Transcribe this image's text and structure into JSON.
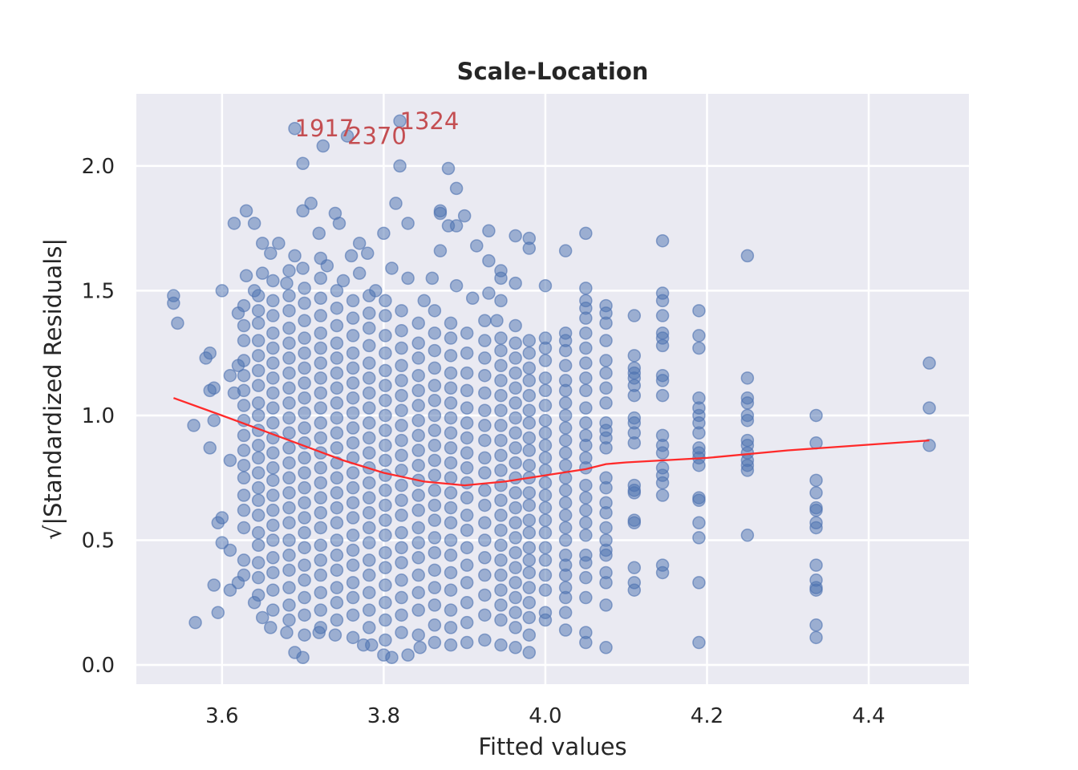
{
  "chart_data": {
    "type": "scatter",
    "title": "Scale-Location",
    "xlabel": "Fitted values",
    "ylabel": "√|Standardized Residuals|",
    "xlim": [
      3.494,
      4.524
    ],
    "ylim": [
      -0.077,
      2.289
    ],
    "xticks": [
      "3.6",
      "3.8",
      "4.0",
      "4.2",
      "4.4"
    ],
    "yticks": [
      "0.0",
      "0.5",
      "1.0",
      "1.5",
      "2.0"
    ],
    "grid": true,
    "colors": {
      "points": "#4c72b0",
      "line": "#ff2a2a",
      "annotations": "#c44e52",
      "background": "#eaeaf2"
    },
    "annotations": [
      {
        "label": "1917",
        "x": 3.69,
        "y": 2.15
      },
      {
        "label": "2370",
        "x": 3.755,
        "y": 2.12
      },
      {
        "label": "1324",
        "x": 3.82,
        "y": 2.18
      }
    ],
    "lowess_line": [
      [
        3.54,
        1.07
      ],
      [
        3.6,
        1.0
      ],
      [
        3.65,
        0.94
      ],
      [
        3.7,
        0.88
      ],
      [
        3.75,
        0.82
      ],
      [
        3.8,
        0.77
      ],
      [
        3.85,
        0.735
      ],
      [
        3.9,
        0.72
      ],
      [
        3.95,
        0.735
      ],
      [
        4.0,
        0.76
      ],
      [
        4.05,
        0.785
      ],
      [
        4.075,
        0.805
      ],
      [
        4.1,
        0.812
      ],
      [
        4.2,
        0.83
      ],
      [
        4.3,
        0.86
      ],
      [
        4.475,
        0.9
      ]
    ],
    "points": [
      [
        3.54,
        1.48
      ],
      [
        3.54,
        1.45
      ],
      [
        3.545,
        1.37
      ],
      [
        3.565,
        0.96
      ],
      [
        3.567,
        0.17
      ],
      [
        3.58,
        1.23
      ],
      [
        3.585,
        1.25
      ],
      [
        3.585,
        1.1
      ],
      [
        3.59,
        1.11
      ],
      [
        3.59,
        0.98
      ],
      [
        3.585,
        0.87
      ],
      [
        3.59,
        0.32
      ],
      [
        3.595,
        0.57
      ],
      [
        3.595,
        0.21
      ],
      [
        3.6,
        1.5
      ],
      [
        3.61,
        0.82
      ],
      [
        3.61,
        0.3
      ],
      [
        3.615,
        1.77
      ],
      [
        3.63,
        1.82
      ],
      [
        3.64,
        1.77
      ],
      [
        3.65,
        1.69
      ],
      [
        3.67,
        1.69
      ],
      [
        3.69,
        2.15
      ],
      [
        3.7,
        2.01
      ],
      [
        3.7,
        1.82
      ],
      [
        3.71,
        1.85
      ],
      [
        3.725,
        2.08
      ],
      [
        3.755,
        2.12
      ],
      [
        3.82,
        2.18
      ],
      [
        3.82,
        2.0
      ],
      [
        3.815,
        1.85
      ],
      [
        3.8,
        1.73
      ],
      [
        3.83,
        1.77
      ],
      [
        3.88,
        1.99
      ],
      [
        3.89,
        1.91
      ],
      [
        3.87,
        1.82
      ],
      [
        3.87,
        1.81
      ],
      [
        3.88,
        1.76
      ],
      [
        3.89,
        1.76
      ],
      [
        3.9,
        1.8
      ],
      [
        3.915,
        1.68
      ],
      [
        3.93,
        1.74
      ],
      [
        3.93,
        1.62
      ],
      [
        3.74,
        1.81
      ],
      [
        3.745,
        1.77
      ],
      [
        3.76,
        1.64
      ],
      [
        3.77,
        1.69
      ],
      [
        3.78,
        1.65
      ],
      [
        3.69,
        0.05
      ],
      [
        3.7,
        0.03
      ],
      [
        3.8,
        0.04
      ],
      [
        3.81,
        0.03
      ],
      [
        3.83,
        0.04
      ],
      [
        3.845,
        0.07
      ],
      [
        3.775,
        0.08
      ],
      [
        3.785,
        0.08
      ],
      [
        3.74,
        0.12
      ],
      [
        3.72,
        0.13
      ],
      [
        3.68,
        0.13
      ],
      [
        3.66,
        0.15
      ],
      [
        3.65,
        0.19
      ],
      [
        3.64,
        0.25
      ],
      [
        3.62,
        0.33
      ],
      [
        3.6,
        0.49
      ],
      [
        3.61,
        0.46
      ],
      [
        3.6,
        0.59
      ],
      [
        3.62,
        1.41
      ],
      [
        3.62,
        1.2
      ],
      [
        3.61,
        1.16
      ],
      [
        3.615,
        1.09
      ],
      [
        3.63,
        1.56
      ],
      [
        3.64,
        1.5
      ],
      [
        3.65,
        1.57
      ],
      [
        3.66,
        1.65
      ],
      [
        3.68,
        1.53
      ],
      [
        3.69,
        1.64
      ],
      [
        3.7,
        1.59
      ],
      [
        3.72,
        1.73
      ],
      [
        3.73,
        1.6
      ],
      [
        3.75,
        1.54
      ],
      [
        3.77,
        1.57
      ],
      [
        3.79,
        1.5
      ],
      [
        3.81,
        1.59
      ],
      [
        3.83,
        1.55
      ],
      [
        3.85,
        1.46
      ],
      [
        3.86,
        1.55
      ],
      [
        3.87,
        1.66
      ],
      [
        3.89,
        1.52
      ],
      [
        3.91,
        1.47
      ],
      [
        3.93,
        1.49
      ],
      [
        3.94,
        1.38
      ]
    ],
    "point_columns": [
      {
        "x": 3.627,
        "ys": [
          0.36,
          0.42,
          0.55,
          0.62,
          0.68,
          0.75,
          0.8,
          0.86,
          0.92,
          0.98,
          1.04,
          1.1,
          1.16,
          1.22,
          1.3,
          1.36,
          1.44
        ]
      },
      {
        "x": 3.645,
        "ys": [
          0.28,
          0.35,
          0.41,
          0.48,
          0.53,
          0.6,
          0.66,
          0.71,
          0.77,
          0.83,
          0.88,
          0.94,
          1.0,
          1.05,
          1.12,
          1.18,
          1.24,
          1.3,
          1.37,
          1.42,
          1.48
        ]
      },
      {
        "x": 3.663,
        "ys": [
          0.22,
          0.3,
          0.37,
          0.43,
          0.5,
          0.56,
          0.62,
          0.68,
          0.74,
          0.79,
          0.85,
          0.91,
          0.97,
          1.03,
          1.09,
          1.15,
          1.21,
          1.27,
          1.33,
          1.4,
          1.46,
          1.54
        ]
      },
      {
        "x": 3.683,
        "ys": [
          0.18,
          0.24,
          0.31,
          0.38,
          0.44,
          0.5,
          0.57,
          0.63,
          0.69,
          0.75,
          0.81,
          0.87,
          0.93,
          0.99,
          1.05,
          1.11,
          1.17,
          1.23,
          1.29,
          1.35,
          1.42,
          1.48,
          1.58
        ]
      },
      {
        "x": 3.702,
        "ys": [
          0.12,
          0.2,
          0.27,
          0.34,
          0.4,
          0.47,
          0.53,
          0.59,
          0.65,
          0.71,
          0.77,
          0.83,
          0.89,
          0.95,
          1.01,
          1.07,
          1.13,
          1.19,
          1.25,
          1.31,
          1.38,
          1.45,
          1.51
        ]
      },
      {
        "x": 3.722,
        "ys": [
          0.15,
          0.22,
          0.29,
          0.36,
          0.42,
          0.48,
          0.55,
          0.61,
          0.67,
          0.73,
          0.79,
          0.85,
          0.91,
          0.97,
          1.03,
          1.09,
          1.15,
          1.21,
          1.27,
          1.33,
          1.4,
          1.47,
          1.55,
          1.63
        ]
      },
      {
        "x": 3.742,
        "ys": [
          0.18,
          0.25,
          0.31,
          0.38,
          0.44,
          0.5,
          0.57,
          0.63,
          0.69,
          0.75,
          0.81,
          0.87,
          0.93,
          0.99,
          1.05,
          1.11,
          1.17,
          1.23,
          1.29,
          1.36,
          1.43,
          1.5
        ]
      },
      {
        "x": 3.762,
        "ys": [
          0.11,
          0.2,
          0.27,
          0.33,
          0.4,
          0.46,
          0.52,
          0.59,
          0.65,
          0.71,
          0.77,
          0.83,
          0.89,
          0.95,
          1.01,
          1.07,
          1.13,
          1.19,
          1.25,
          1.32,
          1.39,
          1.46
        ]
      },
      {
        "x": 3.782,
        "ys": [
          0.15,
          0.22,
          0.29,
          0.36,
          0.42,
          0.49,
          0.55,
          0.61,
          0.67,
          0.73,
          0.79,
          0.85,
          0.91,
          0.97,
          1.03,
          1.09,
          1.15,
          1.21,
          1.28,
          1.35,
          1.41,
          1.48
        ]
      },
      {
        "x": 3.802,
        "ys": [
          0.1,
          0.18,
          0.25,
          0.32,
          0.39,
          0.45,
          0.52,
          0.58,
          0.64,
          0.7,
          0.76,
          0.82,
          0.88,
          0.94,
          1.0,
          1.06,
          1.12,
          1.18,
          1.25,
          1.32,
          1.4,
          1.46
        ]
      },
      {
        "x": 3.822,
        "ys": [
          0.13,
          0.2,
          0.27,
          0.34,
          0.41,
          0.47,
          0.53,
          0.6,
          0.66,
          0.72,
          0.78,
          0.84,
          0.9,
          0.96,
          1.02,
          1.08,
          1.14,
          1.2,
          1.27,
          1.34,
          1.42
        ]
      },
      {
        "x": 3.843,
        "ys": [
          0.12,
          0.22,
          0.29,
          0.36,
          0.43,
          0.49,
          0.55,
          0.62,
          0.68,
          0.74,
          0.8,
          0.86,
          0.92,
          0.98,
          1.04,
          1.1,
          1.16,
          1.23,
          1.29,
          1.37
        ]
      },
      {
        "x": 3.863,
        "ys": [
          0.09,
          0.16,
          0.24,
          0.31,
          0.38,
          0.45,
          0.51,
          0.58,
          0.64,
          0.7,
          0.76,
          0.82,
          0.88,
          0.94,
          1.0,
          1.06,
          1.12,
          1.19,
          1.26,
          1.33,
          1.42
        ]
      },
      {
        "x": 3.883,
        "ys": [
          0.08,
          0.15,
          0.22,
          0.3,
          0.37,
          0.44,
          0.5,
          0.57,
          0.63,
          0.69,
          0.75,
          0.81,
          0.87,
          0.93,
          0.99,
          1.05,
          1.11,
          1.17,
          1.24,
          1.31,
          1.37
        ]
      },
      {
        "x": 3.903,
        "ys": [
          0.09,
          0.17,
          0.25,
          0.33,
          0.4,
          0.47,
          0.54,
          0.6,
          0.67,
          0.73,
          0.79,
          0.85,
          0.91,
          0.97,
          1.03,
          1.1,
          1.17,
          1.25,
          1.33
        ]
      },
      {
        "x": 3.925,
        "ys": [
          0.1,
          0.2,
          0.28,
          0.36,
          0.43,
          0.5,
          0.57,
          0.64,
          0.7,
          0.77,
          0.83,
          0.9,
          0.96,
          1.02,
          1.09,
          1.16,
          1.23,
          1.3,
          1.38
        ]
      },
      {
        "x": 3.945,
        "ys": [
          0.08,
          0.18,
          0.24,
          0.3,
          0.36,
          0.42,
          0.48,
          0.54,
          0.6,
          0.66,
          0.72,
          0.78,
          0.84,
          0.9,
          0.96,
          1.02,
          1.08,
          1.14,
          1.2,
          1.26,
          1.31,
          1.46,
          1.55,
          1.58
        ]
      },
      {
        "x": 3.963,
        "ys": [
          0.07,
          0.15,
          0.21,
          0.27,
          0.33,
          0.39,
          0.45,
          0.51,
          0.57,
          0.63,
          0.69,
          0.75,
          0.81,
          0.87,
          0.93,
          0.99,
          1.05,
          1.11,
          1.17,
          1.23,
          1.29,
          1.36,
          1.53,
          1.72
        ]
      },
      {
        "x": 3.98,
        "ys": [
          0.05,
          0.12,
          0.19,
          0.25,
          0.31,
          0.37,
          0.42,
          0.47,
          0.53,
          0.58,
          0.64,
          0.69,
          0.75,
          0.8,
          0.86,
          0.91,
          0.97,
          1.02,
          1.08,
          1.14,
          1.19,
          1.25,
          1.3,
          1.67,
          1.71
        ]
      },
      {
        "x": 4.0,
        "ys": [
          0.18,
          0.21,
          0.3,
          0.36,
          0.42,
          0.47,
          0.53,
          0.58,
          0.63,
          0.68,
          0.73,
          0.78,
          0.83,
          0.88,
          0.93,
          0.98,
          1.04,
          1.1,
          1.15,
          1.22,
          1.27,
          1.31,
          1.52
        ]
      },
      {
        "x": 4.025,
        "ys": [
          0.14,
          0.21,
          0.27,
          0.31,
          0.36,
          0.4,
          0.44,
          0.5,
          0.55,
          0.6,
          0.65,
          0.7,
          0.75,
          0.8,
          0.85,
          0.9,
          0.95,
          1.0,
          1.05,
          1.1,
          1.14,
          1.2,
          1.26,
          1.3,
          1.33,
          1.66
        ]
      },
      {
        "x": 4.05,
        "ys": [
          0.09,
          0.13,
          0.27,
          0.35,
          0.41,
          0.44,
          0.52,
          0.57,
          0.62,
          0.67,
          0.72,
          0.79,
          0.83,
          0.88,
          0.92,
          0.97,
          1.03,
          1.1,
          1.15,
          1.21,
          1.27,
          1.33,
          1.39,
          1.43,
          1.46,
          1.51,
          1.73
        ]
      },
      {
        "x": 4.075,
        "ys": [
          0.07,
          0.24,
          0.33,
          0.37,
          0.44,
          0.46,
          0.5,
          0.55,
          0.61,
          0.65,
          0.71,
          0.75,
          0.87,
          0.91,
          0.94,
          0.97,
          1.05,
          1.11,
          1.17,
          1.22,
          1.3,
          1.37,
          1.41,
          1.44
        ]
      },
      {
        "x": 4.11,
        "ys": [
          0.3,
          0.33,
          0.39,
          0.57,
          0.58,
          0.69,
          0.7,
          0.72,
          0.89,
          0.93,
          0.97,
          0.99,
          1.08,
          1.12,
          1.15,
          1.17,
          1.19,
          1.24,
          1.4
        ]
      },
      {
        "x": 4.145,
        "ys": [
          0.37,
          0.4,
          0.68,
          0.73,
          0.76,
          0.79,
          0.85,
          0.88,
          0.92,
          1.08,
          1.14,
          1.16,
          1.28,
          1.31,
          1.33,
          1.4,
          1.46,
          1.49,
          1.7
        ]
      },
      {
        "x": 4.19,
        "ys": [
          0.09,
          0.33,
          0.51,
          0.57,
          0.66,
          0.67,
          0.8,
          0.83,
          0.85,
          0.87,
          0.93,
          0.97,
          1.0,
          1.03,
          1.07,
          1.27,
          1.32,
          1.42
        ]
      },
      {
        "x": 4.25,
        "ys": [
          0.52,
          0.78,
          0.8,
          0.82,
          0.85,
          0.88,
          0.9,
          0.98,
          1.0,
          1.05,
          1.07,
          1.15,
          1.64
        ]
      },
      {
        "x": 4.335,
        "ys": [
          0.11,
          0.16,
          0.3,
          0.31,
          0.34,
          0.4,
          0.55,
          0.57,
          0.62,
          0.63,
          0.69,
          0.74,
          0.89,
          1.0
        ]
      },
      {
        "x": 4.475,
        "ys": [
          0.88,
          1.03,
          1.21
        ]
      }
    ]
  }
}
